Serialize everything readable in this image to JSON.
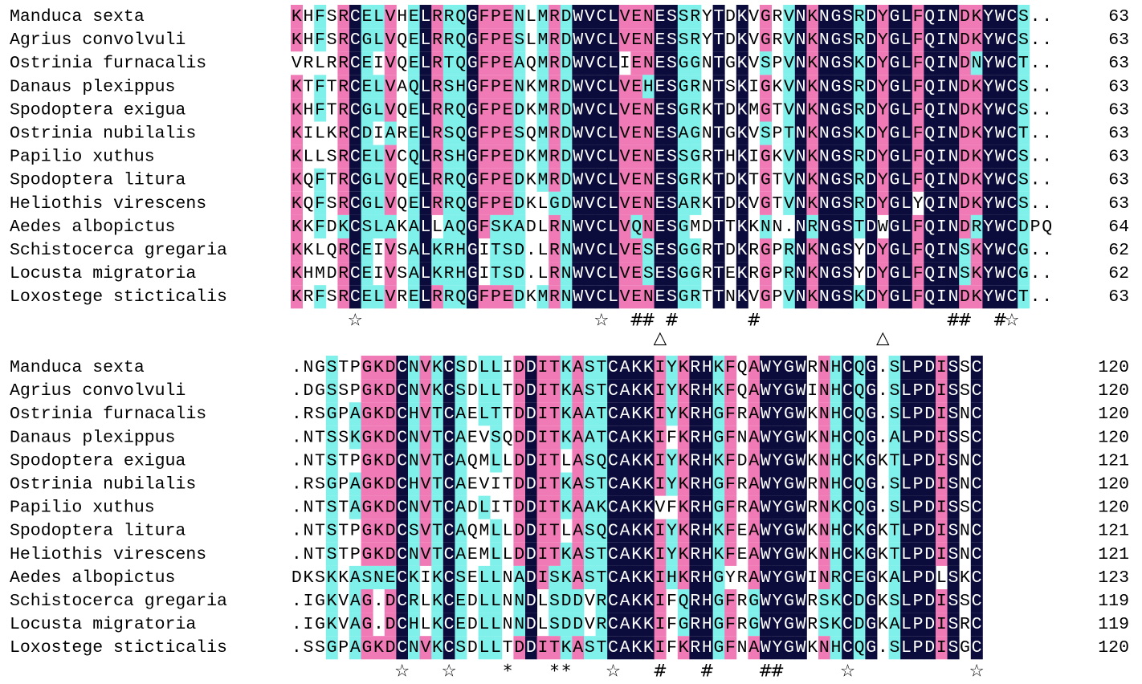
{
  "colors": {
    "identical": "#0c0c3c",
    "strong": "#f07ab6",
    "similar": "#7ff0ea",
    "text_dark_bg": "#ffffff",
    "text_light_bg": "#000000"
  },
  "blocks": [
    {
      "species": [
        "Manduca sexta",
        "Agrius convolvuli",
        "Ostrinia furnacalis",
        "Danaus plexippus",
        "Spodoptera exigua",
        "Ostrinia nubilalis",
        "Papilio xuthus",
        "Spodoptera litura",
        "Heliothis virescens",
        "Aedes albopictus",
        "Schistocerca gregaria",
        "Locusta migratoria",
        "Loxostege sticticalis"
      ],
      "sequences": [
        "KHFSRCELVHELRRQGFPENLMRDWVCLVENESSRYTDKVGRVNKNGSRDYGLFQINDKYWCS..",
        "KHFSRCGLVQELRRQGFPESLMRDWVCLVENESSRYTDKVGRVNKNGSRDYGLFQINDKYWCS..",
        "VRLRRCEIVQELRTQGFPEAQMRDWVCLIENESGGNTGKVSPVNKNGSKDYGLFQINDNYWCT..",
        "KTFTRCELVAQLRSHGFPENKMRDWVCLVEHESGRNTSKIGKVNKNGSRDYGLFQINDKYWCS..",
        "KHFTRCGLVQELRRQGFPEDKMRDWVCLVENESGRKTDKMGTVNKNGSRDYGLFQINDKYWCS..",
        "KILKRCDIARELRSQGFPESQMRDWVCLVENESAGNTGKVSPTNKNGSKDYGLFQINDKYWCT..",
        "KLLSRCELVCQLRSHGFPEDKMRDWVCLVENESSGRTHKIGKVNKNGSRDYGLFQINDKYWCS..",
        "KQFTRCGLVQELRRQGFPEDKMRDWVCLVENESGRKTDKTGTVNKNGSRDYGLFQINDKYWCS..",
        "KQFSRCGLVQELRRQGFPEDKLGDWVCLVENESARKTDKVGTVNKNGSRDYGLYQINDKYWCS..",
        "KKFDKCSLAKALLAQGFSKADLRNWVCLVQNESGMDTTKKNN.NRNGSTDWGLFQINDRYWCDPQ",
        "KKLQRCEIVSALKRHGITSD.LRNWVCLVESESGGRTDKRGPRNKNGSYDYGLFQINSKYWCG..",
        "KHMDRCEIVSALKRHGITSD.LRNWVCLVESESGGRTEKRGPRNKNGSYDYGLFQINSKYWCG..",
        "KRFSRCELVRELRRQGFPEDKMRNWVCLVENESGRTTNKVGPVNKNGSKDYGLFQINDKYWCT.."
      ],
      "end_numbers": [
        "63",
        "63",
        "63",
        "63",
        "63",
        "63",
        "63",
        "63",
        "63",
        "64",
        "62",
        "62",
        "63"
      ],
      "conservation": [
        {
          "col": 5,
          "symbol": "☆"
        },
        {
          "col": 26,
          "symbol": "☆"
        },
        {
          "col": 29,
          "symbol": "#"
        },
        {
          "col": 30,
          "symbol": "#"
        },
        {
          "col": 32,
          "symbol": "#"
        },
        {
          "col": 39,
          "symbol": "#"
        },
        {
          "col": 56,
          "symbol": "#"
        },
        {
          "col": 57,
          "symbol": "#"
        },
        {
          "col": 60,
          "symbol": "#"
        },
        {
          "col": 61,
          "symbol": "☆"
        }
      ],
      "triangles": [
        {
          "col": 31,
          "symbol": "△"
        },
        {
          "col": 50,
          "symbol": "△"
        }
      ]
    },
    {
      "species": [
        "Manduca sexta",
        "Agrius convolvuli",
        "Ostrinia furnacalis",
        "Danaus plexippus",
        "Spodoptera exigua",
        "Ostrinia nubilalis",
        "Papilio xuthus",
        "Spodoptera litura",
        "Heliothis virescens",
        "Aedes albopictus",
        "Schistocerca gregaria",
        "Locusta migratoria",
        "Loxostege sticticalis"
      ],
      "sequences": [
        ".NGSTPGKDCNVKCSDLLIDDITKASTCAKKIYKRHKFQAWYGWRNHCQG.SLPDISSC",
        ".DGSSPGKDCNVKCSDLLTDDITKASTCAKKIYKRHKFQAWYGWINHCQG.SLPDISSC",
        ".RSGPAGKDCHVTCAELTTDDITKAATCAKKIYKRHGFRAWYGWKNHCQG.SLPDISNC",
        ".NTSSKGKDCNVTCAEVSQDDITKAATCAKKIFKRHGFNAWYGWKNHCQG.ALPDISSC",
        ".NTSTPGKDCNVTCAQMLLDDITLASQCAKKIYKRHKFDAWYGWKNHCKGKTLPDISNC",
        ".RSGPAGKDCHVTCAEVITDDITKASTCAKKIYKRHGFRAWYGWRNHCQG.SLPDISNC",
        ".NTSTAGKDCNVTCADLITDDITKAAKCAKKVFKRHGFRAWYGWRNKCQG.SLPDISSC",
        ".NTSTPGKDCSVTCAQMLLDDITLASQCAKKIYKRHKFEAWYGWKNHCKGKTLPDISNC",
        ".NTSTPGKDCNVTCAEMLLDDITKASTCAKKIYKRHKFEAWYGWKNHCKGKTLPDISNC",
        "DKSKKASNECKIKCSELLNADISKASTCAKKIHKRHGYRAWYGWINRCEGKALPDLSKC",
        ".IGKVAG.DCRLKCEDLLNNDLSDDVRCAKKIFQRHGFRGWYGWRSKCDGKSLPDISSC",
        ".IGKVAG.DCHLKCEDLLNNDLSDDVRCAKKIFGRHGFRGWYGWRSKCDGKALPDISRC",
        ".SSGPAGKDCNVKCSDLLTDDITKASTCAKKIFKRHGFNAWYGWKNHCQG.SLPDISGC"
      ],
      "end_numbers": [
        "120",
        "120",
        "120",
        "120",
        "121",
        "120",
        "120",
        "121",
        "121",
        "123",
        "119",
        "119",
        "120"
      ],
      "conservation": [
        {
          "col": 9,
          "symbol": "☆"
        },
        {
          "col": 13,
          "symbol": "☆"
        },
        {
          "col": 18,
          "symbol": "*"
        },
        {
          "col": 22,
          "symbol": "*"
        },
        {
          "col": 23,
          "symbol": "*"
        },
        {
          "col": 27,
          "symbol": "☆"
        },
        {
          "col": 31,
          "symbol": "#"
        },
        {
          "col": 35,
          "symbol": "#"
        },
        {
          "col": 40,
          "symbol": "#"
        },
        {
          "col": 41,
          "symbol": "#"
        },
        {
          "col": 47,
          "symbol": "☆"
        },
        {
          "col": 58,
          "symbol": "☆"
        }
      ],
      "triangles": []
    }
  ]
}
